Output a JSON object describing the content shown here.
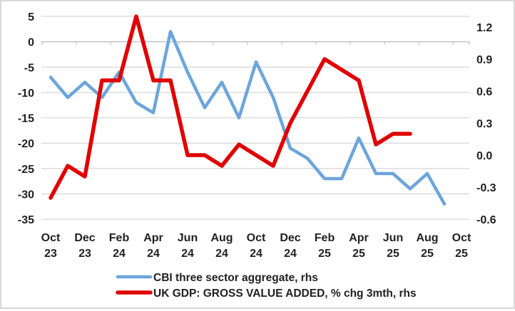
{
  "chart_data": {
    "type": "line",
    "title": "",
    "grid": true,
    "legend_position": "bottom",
    "months": [
      "Oct 23",
      "Nov 23",
      "Dec 23",
      "Jan 24",
      "Feb 24",
      "Mar 24",
      "Apr 24",
      "May 24",
      "Jun 24",
      "Jul 24",
      "Aug 24",
      "Sep 24",
      "Oct 24",
      "Nov 24",
      "Dec 24",
      "Jan 25",
      "Feb 25",
      "Mar 25",
      "Apr 25",
      "May 25",
      "Jun 25",
      "Jul 25",
      "Aug 25",
      "Sep 25",
      "Oct 25"
    ],
    "x_tick_labels": [
      {
        "line1": "Oct",
        "line2": "23"
      },
      {
        "line1": "Dec",
        "line2": "23"
      },
      {
        "line1": "Feb",
        "line2": "24"
      },
      {
        "line1": "Apr",
        "line2": "24"
      },
      {
        "line1": "Jun",
        "line2": "24"
      },
      {
        "line1": "Aug",
        "line2": "24"
      },
      {
        "line1": "Oct",
        "line2": "24"
      },
      {
        "line1": "Dec",
        "line2": "24"
      },
      {
        "line1": "Feb",
        "line2": "25"
      },
      {
        "line1": "Apr",
        "line2": "25"
      },
      {
        "line1": "Jun",
        "line2": "25"
      },
      {
        "line1": "Aug",
        "line2": "25"
      },
      {
        "line1": "Oct",
        "line2": "25"
      }
    ],
    "left_axis": {
      "min": -35,
      "max": 5,
      "tick_labels": [
        "5",
        "0",
        "-5",
        "-10",
        "-15",
        "-20",
        "-25",
        "-30",
        "-35"
      ],
      "tick_values": [
        5,
        0,
        -5,
        -10,
        -15,
        -20,
        -25,
        -30,
        -35
      ]
    },
    "right_axis": {
      "min": -0.6,
      "max": 1.3,
      "tick_labels": [
        "1.2",
        "0.9",
        "0.6",
        "0.3",
        "0.0",
        "-0.3",
        "-0.6"
      ],
      "tick_values": [
        1.2,
        0.9,
        0.6,
        0.3,
        0.0,
        -0.3,
        -0.6
      ]
    },
    "series": [
      {
        "name": "CBI three sector aggregate, rhs",
        "axis": "left",
        "color": "#6ca5db",
        "stroke_width": 4.5,
        "start_month_index": 0,
        "values": [
          -7,
          -11,
          -8,
          -11,
          -6,
          -12,
          -14,
          2,
          -6,
          -13,
          -8,
          -15,
          -4,
          -11,
          -21,
          -23,
          -27,
          -27,
          -19,
          -26,
          -26,
          -29,
          -26,
          -32
        ]
      },
      {
        "name": "UK GDP: GROSS VALUE ADDED, % chg 3mth, rhs",
        "axis": "right",
        "color": "#e00000",
        "stroke_width": 5.5,
        "start_month_index": 0,
        "values": [
          -0.4,
          -0.1,
          -0.2,
          0.7,
          0.7,
          1.3,
          0.7,
          0.7,
          0.0,
          0.0,
          -0.1,
          0.1,
          0.0,
          -0.1,
          0.3,
          0.6,
          0.9,
          0.8,
          0.7,
          0.1,
          0.2,
          0.2
        ]
      }
    ],
    "colors": {
      "gridline": "#d6d6d6",
      "axis_line": "#bfbfbf",
      "tick_label": "#1f1f1f"
    }
  }
}
